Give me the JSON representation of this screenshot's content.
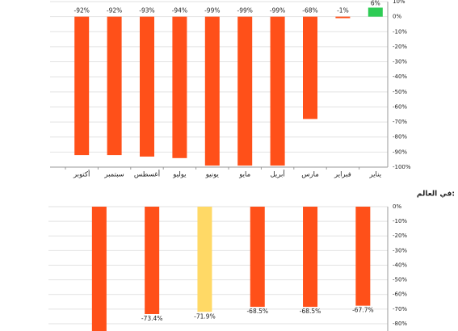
{
  "chart_data": [
    {
      "type": "bar",
      "categories": [
        "يناير",
        "فبراير",
        "مارس",
        "أبريل",
        "مايو",
        "يونيو",
        "يوليو",
        "أغسطس",
        "سبتمبر",
        "أكتوبر"
      ],
      "values": [
        6,
        -1,
        -68,
        -99,
        -99,
        -99,
        -94,
        -93,
        -92,
        -92
      ],
      "value_labels": [
        "6%",
        "-1%",
        "-68%",
        "-99%",
        "-99%",
        "-99%",
        "-94%",
        "-93%",
        "-92%",
        "-92%"
      ],
      "colors": [
        "#2ecc55",
        "#ff5019",
        "#ff5019",
        "#ff5019",
        "#ff5019",
        "#ff5019",
        "#ff5019",
        "#ff5019",
        "#ff5019",
        "#ff5019"
      ],
      "ylim": [
        -100,
        10
      ],
      "yticks": [
        {
          "value": 10,
          "label": "10%"
        },
        {
          "value": 0,
          "label": "0%"
        },
        {
          "value": -10,
          "label": "-10%"
        },
        {
          "value": -20,
          "label": "-20%"
        },
        {
          "value": -30,
          "label": "-30%"
        },
        {
          "value": -40,
          "label": "-40%"
        },
        {
          "value": -50,
          "label": "-50%"
        },
        {
          "value": -60,
          "label": "-60%"
        },
        {
          "value": -70,
          "label": "-70%"
        },
        {
          "value": -80,
          "label": "-80%"
        },
        {
          "value": -90,
          "label": "-90%"
        },
        {
          "value": -100,
          "label": "-100%"
        }
      ],
      "grid": true
    },
    {
      "type": "bar",
      "title": "في العالم:",
      "values": [
        -67.7,
        -68.5,
        -68.5,
        -71.9,
        -73.4,
        -85
      ],
      "value_labels": [
        "-67.7%",
        "-68.5%",
        "-68.5%",
        "-71.9%",
        "-73.4%",
        null
      ],
      "colors": [
        "#ff5019",
        "#ff5019",
        "#ff5019",
        "#ffd966",
        "#ff5019",
        "#ff5019"
      ],
      "ylim": [
        -85,
        0
      ],
      "yticks": [
        {
          "value": 0,
          "label": "0%"
        },
        {
          "value": -10,
          "label": "-10%"
        },
        {
          "value": -20,
          "label": "-20%"
        },
        {
          "value": -30,
          "label": "-30%"
        },
        {
          "value": -40,
          "label": "-40%"
        },
        {
          "value": -50,
          "label": "-50%"
        },
        {
          "value": -60,
          "label": "-60%"
        },
        {
          "value": -70,
          "label": "-70%"
        },
        {
          "value": -80,
          "label": "-80%"
        }
      ],
      "grid": true
    }
  ]
}
